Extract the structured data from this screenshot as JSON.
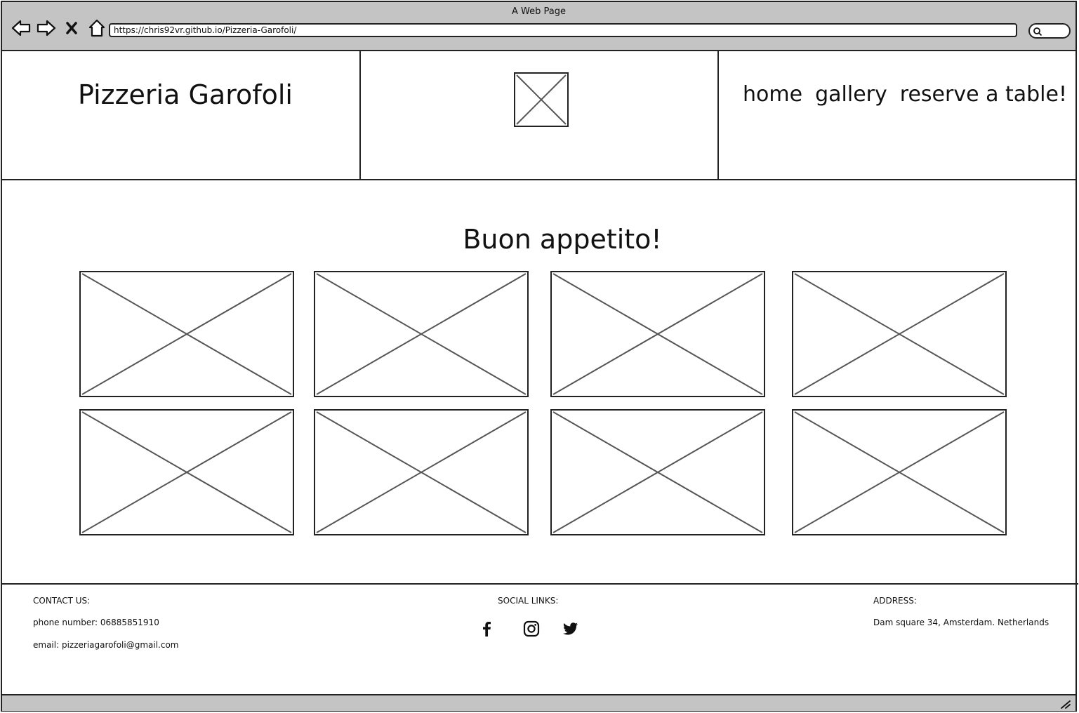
{
  "browser": {
    "window_title": "A Web Page",
    "url": "https://chris92vr.github.io/Pizzeria-Garofoli/"
  },
  "header": {
    "brand": "Pizzeria Garofoli",
    "logo_icon": "image-placeholder-icon",
    "nav": [
      {
        "label": "home"
      },
      {
        "label": "gallery"
      },
      {
        "label": "reserve a table!"
      }
    ]
  },
  "main": {
    "title": "Buon appetito!",
    "gallery_icon": "image-placeholder-icon"
  },
  "footer": {
    "contact": {
      "heading": "CONTACT US:",
      "phone": "phone number: 06885851910",
      "email": "email: pizzeriagarofoli@gmail.com"
    },
    "social": {
      "heading": "SOCIAL LINKS:",
      "icons": [
        "facebook-icon",
        "instagram-icon",
        "twitter-icon"
      ]
    },
    "address": {
      "heading": "ADDRESS:",
      "value": "Dam square 34, Amsterdam. Netherlands"
    }
  }
}
